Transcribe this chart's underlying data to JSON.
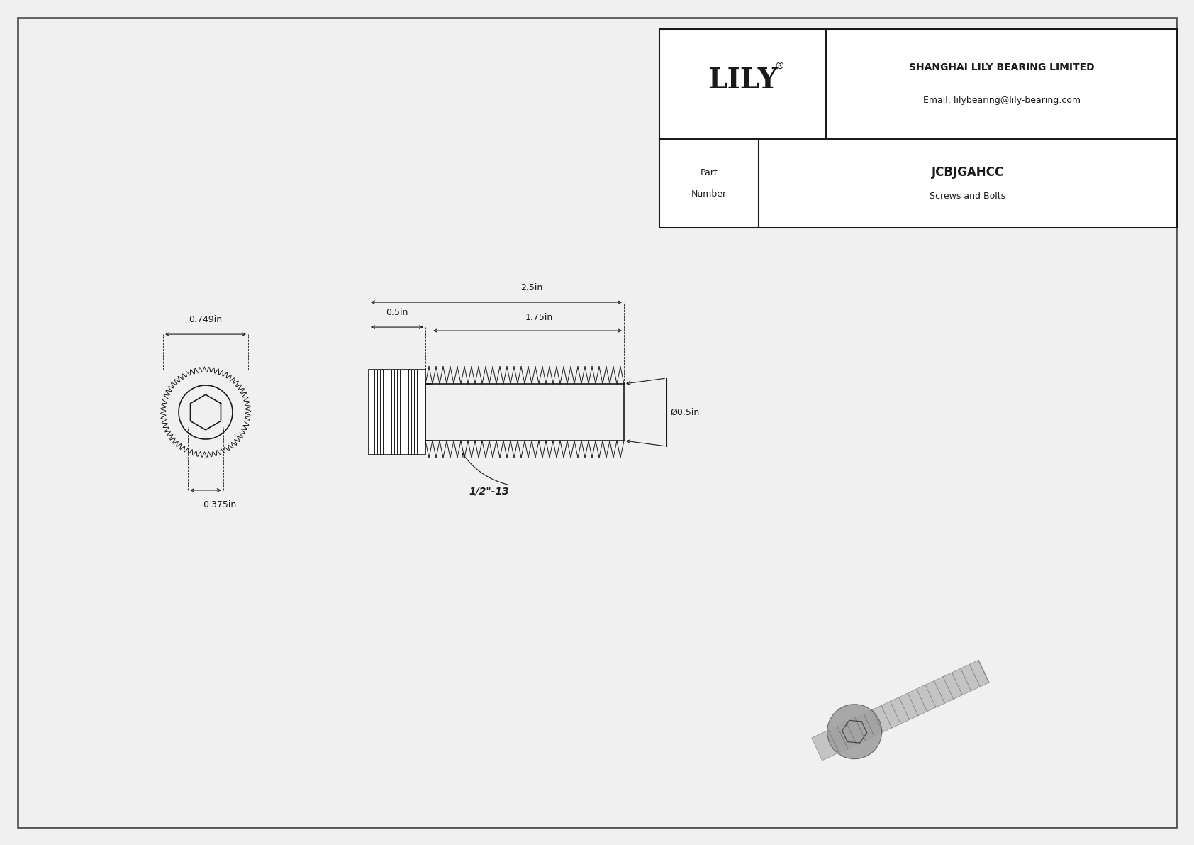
{
  "bg_color": "#f0f0f0",
  "line_color": "#1a1a1a",
  "title_company": "SHANGHAI LILY BEARING LIMITED",
  "title_email": "Email: lilybearing@lily-bearing.com",
  "part_number": "JCBJGAHCC",
  "part_category": "Screws and Bolts",
  "brand": "LILY",
  "dim_head_od": "0.749in",
  "dim_hex_id": "0.375in",
  "dim_head_len": "0.5in",
  "dim_thread_len": "2.5in",
  "dim_thread_len2": "1.75in",
  "dim_shank_od": "Ø0.5in",
  "dim_thread_spec": "1/2\"-13",
  "font_size_dim": 9,
  "font_size_brand": 28,
  "font_size_table": 9
}
